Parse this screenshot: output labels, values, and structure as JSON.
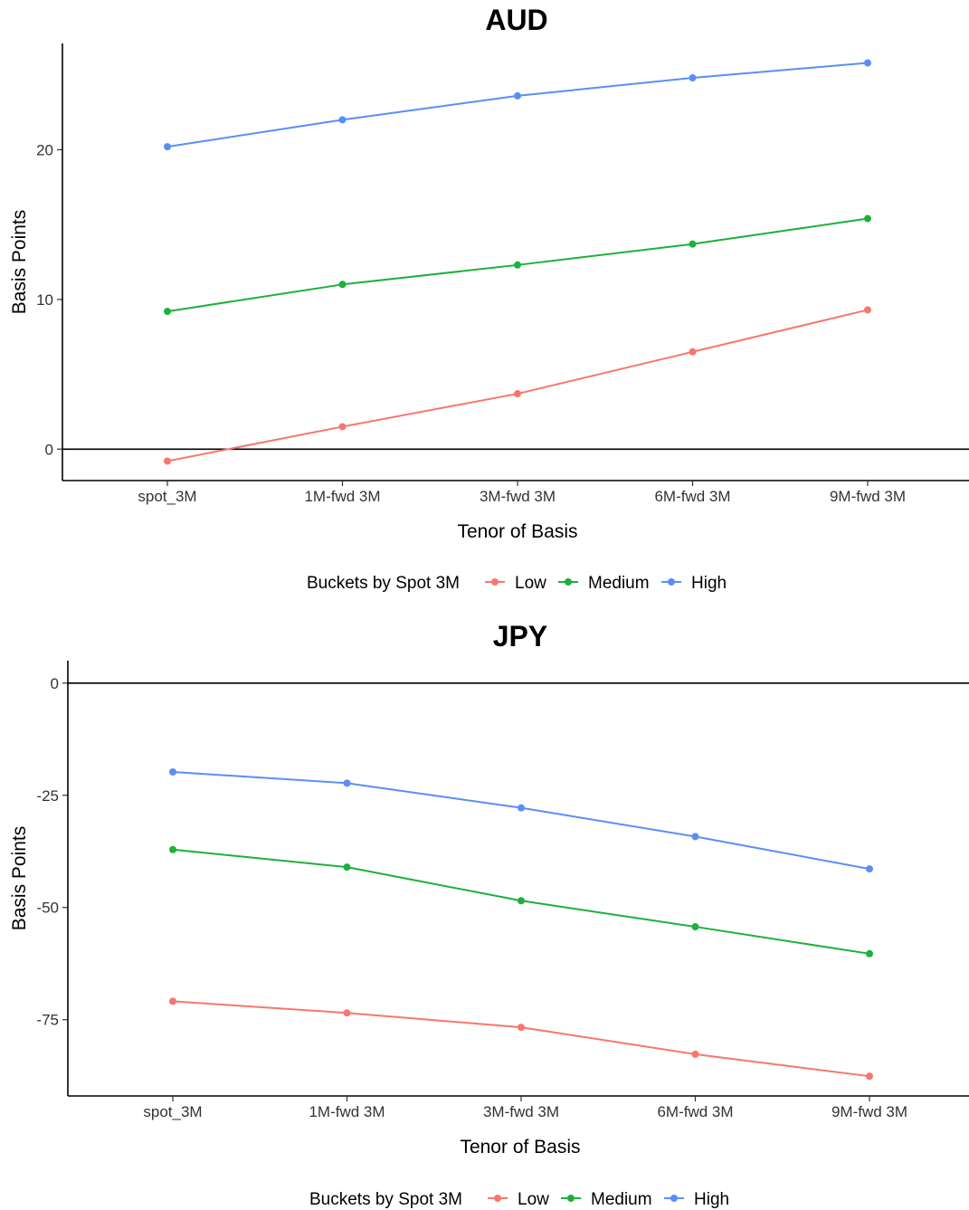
{
  "chart_data": [
    {
      "type": "line",
      "title": "AUD",
      "xlabel": "Tenor of Basis",
      "ylabel": "Basis Points",
      "categories": [
        "spot_3M",
        "1M-fwd 3M",
        "3M-fwd 3M",
        "6M-fwd 3M",
        "9M-fwd 3M"
      ],
      "yticks": [
        0,
        10,
        20
      ],
      "ylim": [
        -2.1,
        27.1
      ],
      "zero_line": true,
      "grid": false,
      "legend_position": "bottom",
      "legend_title": "Buckets by Spot 3M",
      "series": [
        {
          "name": "Low",
          "color": "#F8766D",
          "values": [
            -0.8,
            1.5,
            3.7,
            6.5,
            9.3
          ]
        },
        {
          "name": "Medium",
          "color": "#1CB03C",
          "values": [
            9.2,
            11.0,
            12.3,
            13.7,
            15.4
          ]
        },
        {
          "name": "High",
          "color": "#5A8EF7",
          "values": [
            20.2,
            22.0,
            23.6,
            24.8,
            25.8
          ]
        }
      ]
    },
    {
      "type": "line",
      "title": "JPY",
      "xlabel": "Tenor of Basis",
      "ylabel": "Basis Points",
      "categories": [
        "spot_3M",
        "1M-fwd 3M",
        "3M-fwd 3M",
        "6M-fwd 3M",
        "9M-fwd 3M"
      ],
      "yticks": [
        -75,
        -50,
        -25,
        0
      ],
      "ylim": [
        -92,
        5
      ],
      "zero_line": true,
      "grid": false,
      "legend_position": "bottom",
      "legend_title": "Buckets by Spot 3M",
      "series": [
        {
          "name": "Low",
          "color": "#F8766D",
          "values": [
            -70.9,
            -73.5,
            -76.7,
            -82.7,
            -87.6
          ]
        },
        {
          "name": "Medium",
          "color": "#1CB03C",
          "values": [
            -37.1,
            -41.0,
            -48.5,
            -54.3,
            -60.3
          ]
        },
        {
          "name": "High",
          "color": "#5A8EF7",
          "values": [
            -19.8,
            -22.3,
            -27.8,
            -34.2,
            -41.4
          ]
        }
      ]
    }
  ]
}
